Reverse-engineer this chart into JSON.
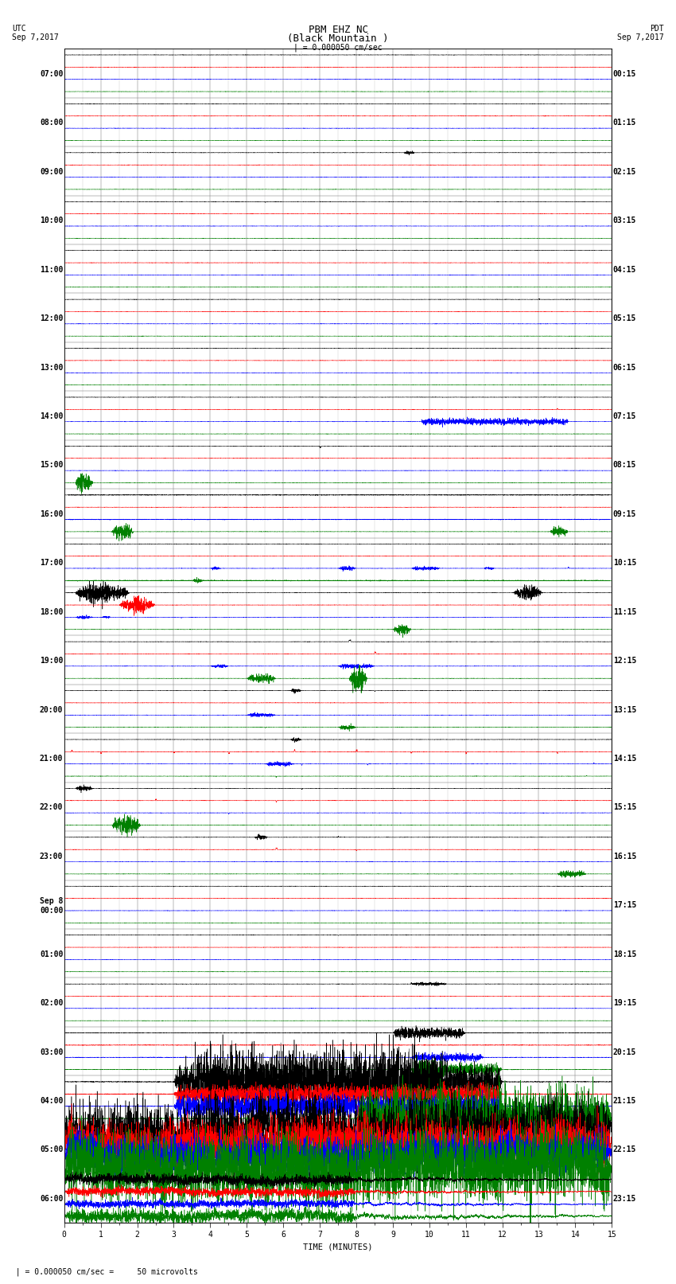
{
  "title_line1": "PBM EHZ NC",
  "title_line2": "(Black Mountain )",
  "title_scale": "| = 0.000050 cm/sec",
  "label_utc": "UTC",
  "label_pdt": "PDT",
  "date_left": "Sep 7,2017",
  "date_right": "Sep 7,2017",
  "xlabel": "TIME (MINUTES)",
  "footnote": "= 0.000050 cm/sec =     50 microvolts",
  "left_times": [
    "07:00",
    "08:00",
    "09:00",
    "10:00",
    "11:00",
    "12:00",
    "13:00",
    "14:00",
    "15:00",
    "16:00",
    "17:00",
    "18:00",
    "19:00",
    "20:00",
    "21:00",
    "22:00",
    "23:00",
    "Sep 8\n00:00",
    "01:00",
    "02:00",
    "03:00",
    "04:00",
    "05:00",
    "06:00"
  ],
  "right_times": [
    "00:15",
    "01:15",
    "02:15",
    "03:15",
    "04:15",
    "05:15",
    "06:15",
    "07:15",
    "08:15",
    "09:15",
    "10:15",
    "11:15",
    "12:15",
    "13:15",
    "14:15",
    "15:15",
    "16:15",
    "17:15",
    "18:15",
    "19:15",
    "20:15",
    "21:15",
    "22:15",
    "23:15"
  ],
  "n_rows": 24,
  "n_traces_per_row": 4,
  "trace_colors": [
    "black",
    "red",
    "blue",
    "green"
  ],
  "bg_color": "white",
  "grid_color": "#888888",
  "fig_width": 8.5,
  "fig_height": 16.13,
  "dpi": 100,
  "xlim": [
    0,
    15
  ],
  "xticks": [
    0,
    1,
    2,
    3,
    4,
    5,
    6,
    7,
    8,
    9,
    10,
    11,
    12,
    13,
    14,
    15
  ],
  "title_fontsize": 9,
  "label_fontsize": 7.5,
  "tick_fontsize": 7,
  "row_label_fontsize": 7
}
